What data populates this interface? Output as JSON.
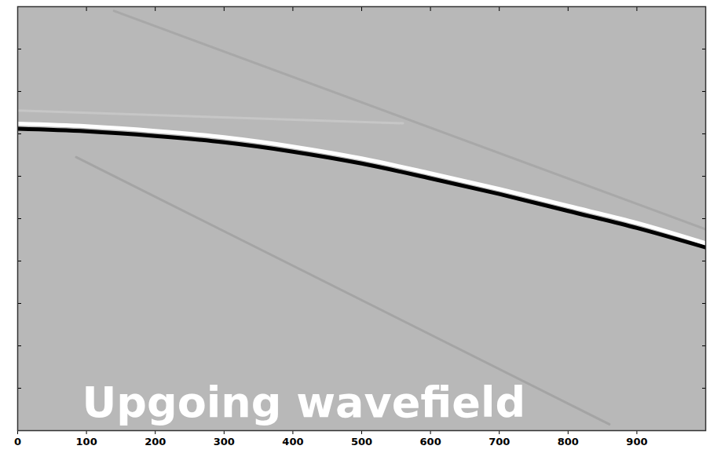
{
  "chart_data": {
    "type": "line",
    "annotation": "Upgoing wavefield",
    "x": [
      0,
      100,
      200,
      300,
      400,
      500,
      600,
      700,
      800,
      900,
      1000
    ],
    "series": [
      {
        "color": "#000000",
        "values": [
          2.88,
          2.94,
          3.05,
          3.2,
          3.42,
          3.7,
          4.05,
          4.42,
          4.82,
          5.22,
          5.68
        ]
      },
      {
        "color": "#ffffff",
        "values": [
          2.76,
          2.82,
          2.93,
          3.08,
          3.3,
          3.58,
          3.93,
          4.3,
          4.7,
          5.1,
          5.58
        ]
      }
    ],
    "faint_events": [
      {
        "color": "#a8a8a8",
        "x": [
          140,
          1000
        ],
        "values": [
          0.1,
          5.25
        ]
      },
      {
        "color": "#a4a4a4",
        "x": [
          85,
          860
        ],
        "values": [
          3.55,
          9.85
        ]
      },
      {
        "color": "#c6c6c6",
        "x": [
          0,
          560
        ],
        "values": [
          2.45,
          2.75
        ]
      }
    ],
    "xlim": [
      0,
      1000
    ],
    "xticks": [
      0,
      100,
      200,
      300,
      400,
      500,
      600,
      700,
      800,
      900
    ],
    "ylim": [
      0,
      10
    ],
    "yticks": [
      0,
      1,
      2,
      3,
      4,
      5,
      6,
      7,
      8,
      9,
      10
    ],
    "tick_labels": "x",
    "grid": false
  }
}
